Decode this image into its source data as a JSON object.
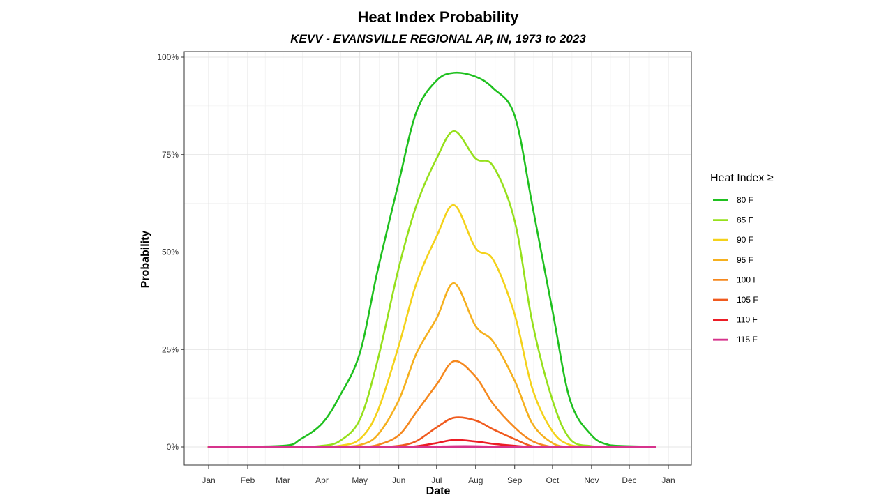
{
  "chart_data": {
    "type": "line",
    "title": "Heat Index Probability",
    "subtitle": "KEVV - EVANSVILLE REGIONAL AP, IN, 1973 to 2023",
    "xlabel": "Date",
    "ylabel": "Probability",
    "x_ticks": [
      "Jan",
      "Feb",
      "Mar",
      "Apr",
      "May",
      "Jun",
      "Jul",
      "Aug",
      "Sep",
      "Oct",
      "Nov",
      "Dec",
      "Jan"
    ],
    "y_ticks": [
      "0%",
      "25%",
      "50%",
      "75%",
      "100%"
    ],
    "xlim": [
      "Jan 1",
      "Jan 1 (next year)"
    ],
    "ylim": [
      0,
      1
    ],
    "grid": true,
    "legend": {
      "title": "Heat Index ≥",
      "position": "right"
    },
    "series_x": [
      "Jan 1",
      "Mar 1",
      "Mar 15",
      "Apr 1",
      "Apr 15",
      "May 1",
      "May 15",
      "Jun 1",
      "Jun 15",
      "Jul 1",
      "Jul 15",
      "Aug 1",
      "Aug 15",
      "Sep 1",
      "Sep 15",
      "Oct 1",
      "Oct 15",
      "Nov 1",
      "Nov 15",
      "Dec 1",
      "Jan 1"
    ],
    "series": [
      {
        "name": "80 F",
        "color": "#1fc01f",
        "values": [
          0,
          0.003,
          0.02,
          0.06,
          0.13,
          0.24,
          0.45,
          0.68,
          0.86,
          0.94,
          0.96,
          0.95,
          0.92,
          0.85,
          0.62,
          0.35,
          0.12,
          0.03,
          0.005,
          0,
          0
        ]
      },
      {
        "name": "85 F",
        "color": "#96e01c",
        "values": [
          0,
          0,
          0,
          0.003,
          0.015,
          0.07,
          0.22,
          0.46,
          0.62,
          0.74,
          0.81,
          0.74,
          0.72,
          0.58,
          0.32,
          0.12,
          0.02,
          0.002,
          0,
          0,
          0
        ]
      },
      {
        "name": "90 F",
        "color": "#f4d21a",
        "values": [
          0,
          0,
          0,
          0,
          0.003,
          0.02,
          0.09,
          0.26,
          0.42,
          0.54,
          0.62,
          0.51,
          0.48,
          0.34,
          0.15,
          0.04,
          0.005,
          0,
          0,
          0,
          0
        ]
      },
      {
        "name": "95 F",
        "color": "#f5b01e",
        "values": [
          0,
          0,
          0,
          0,
          0,
          0.005,
          0.03,
          0.12,
          0.24,
          0.33,
          0.42,
          0.31,
          0.27,
          0.17,
          0.06,
          0.01,
          0,
          0,
          0,
          0,
          0
        ]
      },
      {
        "name": "100 F",
        "color": "#f5881e",
        "values": [
          0,
          0,
          0,
          0,
          0,
          0,
          0.005,
          0.03,
          0.09,
          0.16,
          0.22,
          0.18,
          0.11,
          0.05,
          0.015,
          0,
          0,
          0,
          0,
          0,
          0
        ]
      },
      {
        "name": "105 F",
        "color": "#f05a1e",
        "values": [
          0,
          0,
          0,
          0,
          0,
          0,
          0,
          0.003,
          0.015,
          0.05,
          0.075,
          0.068,
          0.045,
          0.02,
          0.002,
          0,
          0,
          0,
          0,
          0,
          0
        ]
      },
      {
        "name": "110 F",
        "color": "#ec1c24",
        "values": [
          0,
          0,
          0,
          0,
          0,
          0,
          0,
          0,
          0.002,
          0.01,
          0.018,
          0.014,
          0.008,
          0.003,
          0,
          0,
          0,
          0,
          0,
          0,
          0
        ]
      },
      {
        "name": "115 F",
        "color": "#d6338c",
        "values": [
          0,
          0,
          0,
          0,
          0,
          0,
          0,
          0,
          0,
          0.001,
          0.002,
          0.002,
          0.001,
          0,
          0,
          0,
          0,
          0,
          0,
          0,
          0
        ]
      }
    ]
  }
}
